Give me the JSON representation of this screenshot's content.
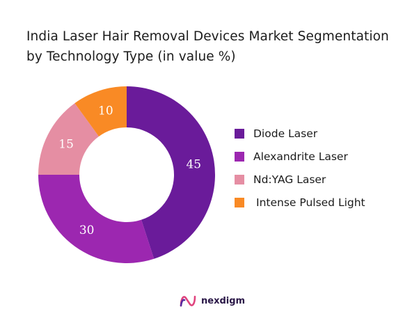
{
  "title_line1": "India Laser Hair Removal Devices Market Segmentation",
  "title_line2": "by Technology Type (in value %)",
  "chart_data": {
    "type": "pie",
    "variant": "donut",
    "title": "India Laser Hair Removal Devices Market Segmentation by Technology Type (in value %)",
    "categories": [
      "Diode Laser",
      "Alexandrite Laser",
      "Nd:YAG Laser",
      "Intense Pulsed Light"
    ],
    "values": [
      45,
      30,
      15,
      10
    ],
    "colors": [
      "#6a1b9a",
      "#9c27b0",
      "#e58ea3",
      "#f98a25"
    ],
    "data_labels": [
      "45",
      "30",
      "15",
      "10"
    ],
    "legend_position": "right"
  },
  "brand": {
    "name": "nexdigm",
    "icon": "nexdigm-logo-icon"
  }
}
